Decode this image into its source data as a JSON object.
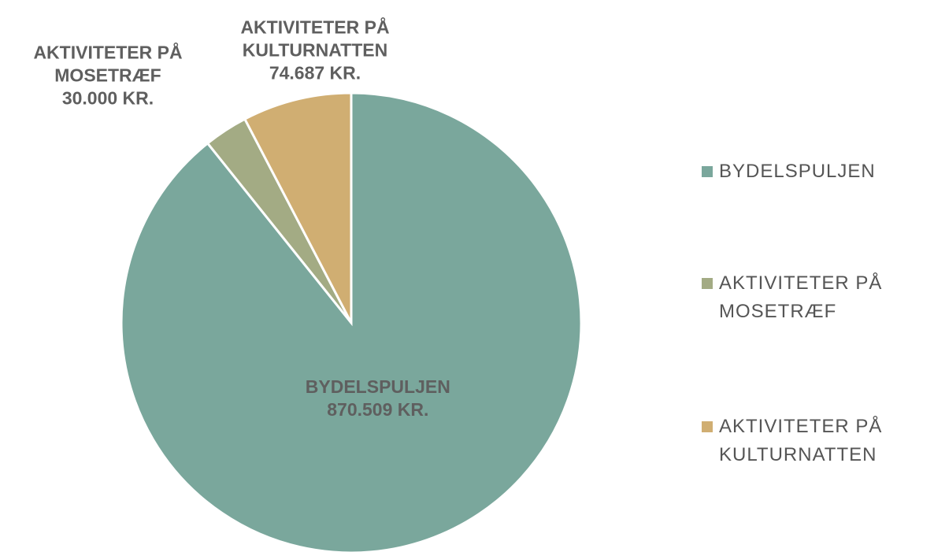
{
  "chart_data": {
    "type": "pie",
    "categories": [
      "BYDELSPULJEN",
      "AKTIVITETER PÅ MOSETRÆF",
      "AKTIVITETER PÅ KULTURNATTEN"
    ],
    "values": [
      870509,
      30000,
      74687
    ],
    "value_labels": [
      "870.509 KR.",
      "30.000 KR.",
      "74.687 KR."
    ],
    "colors": [
      "#7aa79c",
      "#a3ab84",
      "#d0ae72"
    ],
    "legend": "right"
  }
}
